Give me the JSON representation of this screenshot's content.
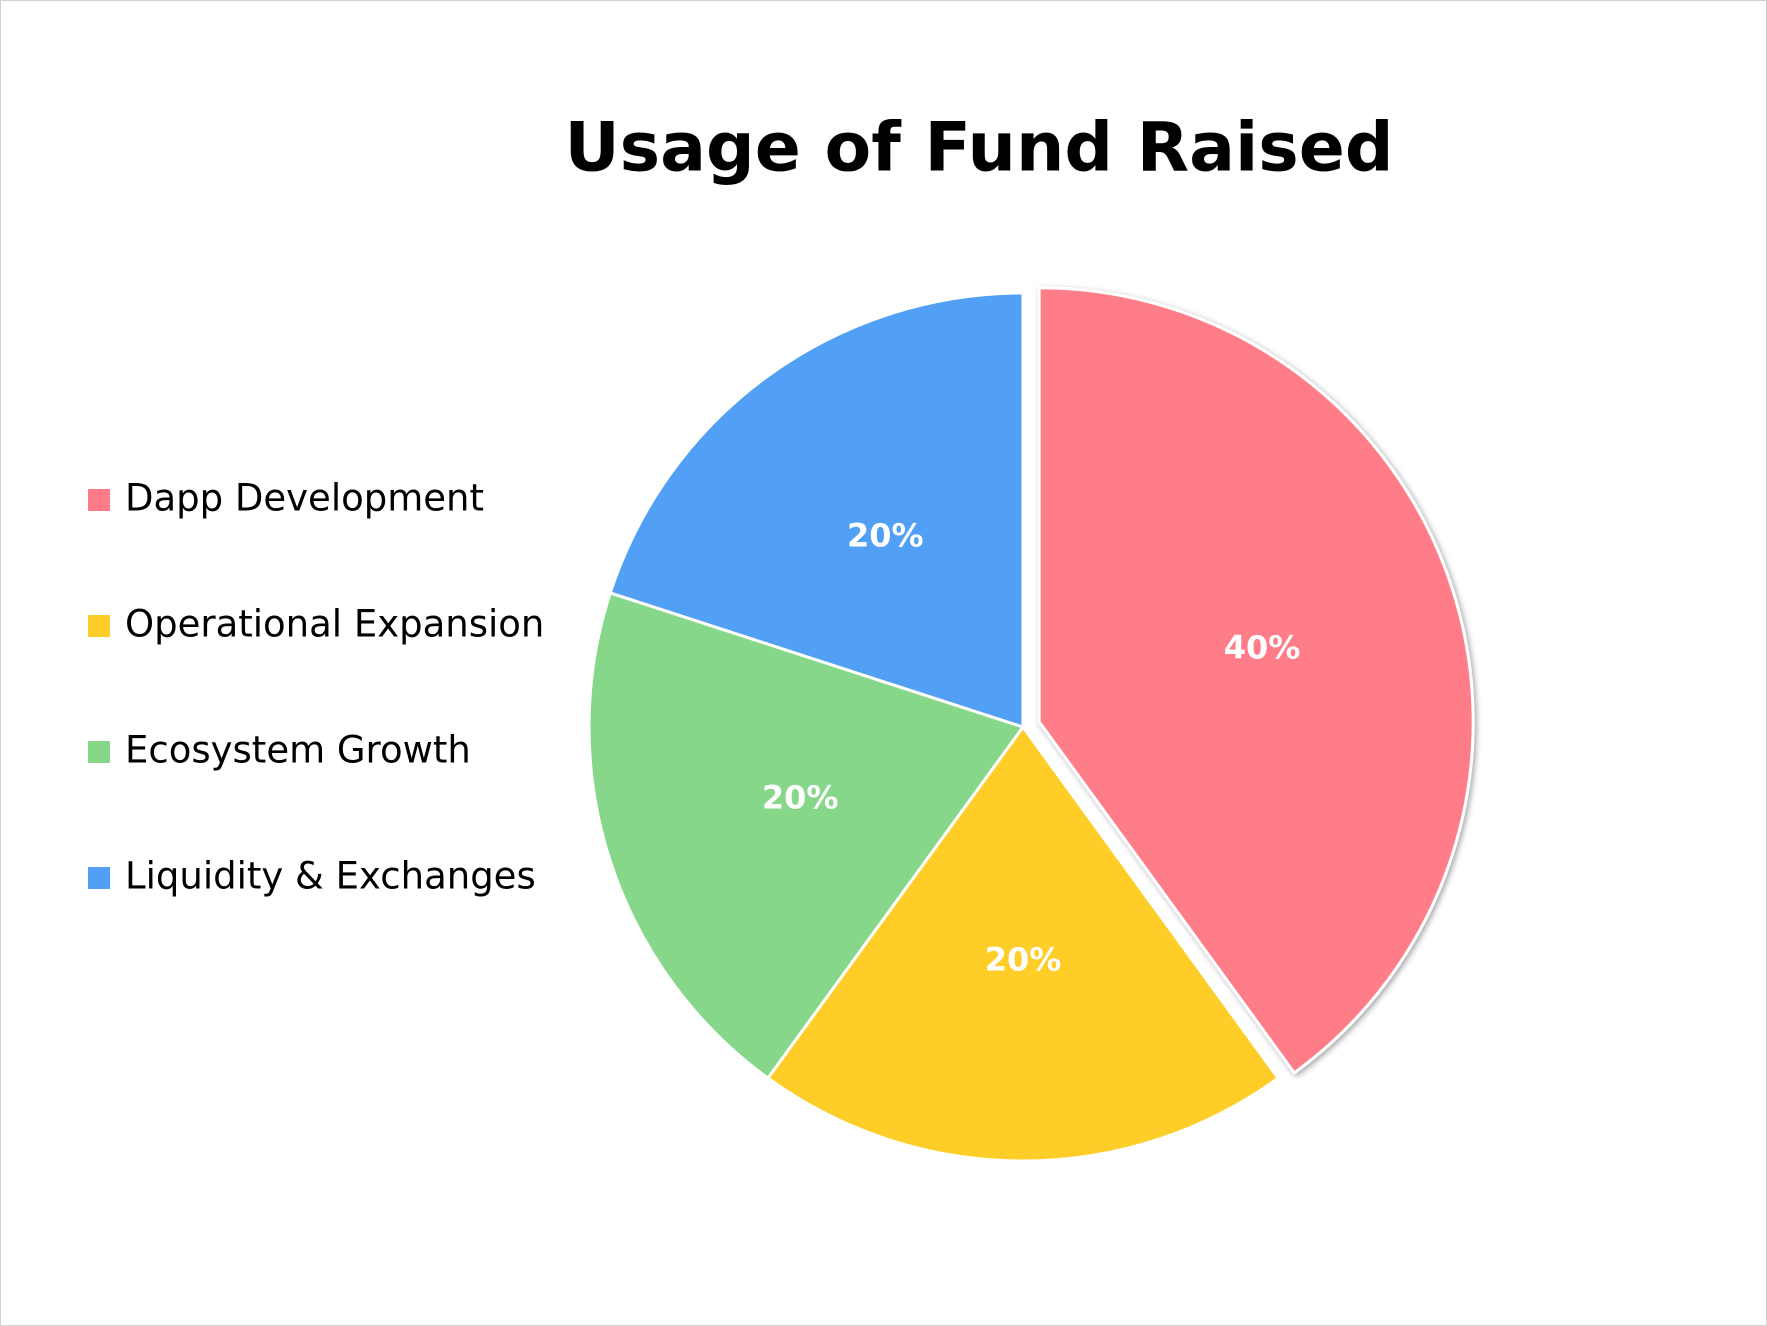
{
  "chart_data": {
    "type": "pie",
    "title": "Usage of Fund Raised",
    "categories": [
      "Dapp Development",
      "Operational Expansion",
      "Ecosystem Growth",
      "Liquidity & Exchanges"
    ],
    "values": [
      40,
      20,
      20,
      20
    ],
    "value_labels": [
      "40%",
      "20%",
      "20%",
      "20%"
    ],
    "colors": [
      "#ff7b89",
      "#ffcd27",
      "#86d789",
      "#51a0f5"
    ],
    "legend": "left"
  }
}
